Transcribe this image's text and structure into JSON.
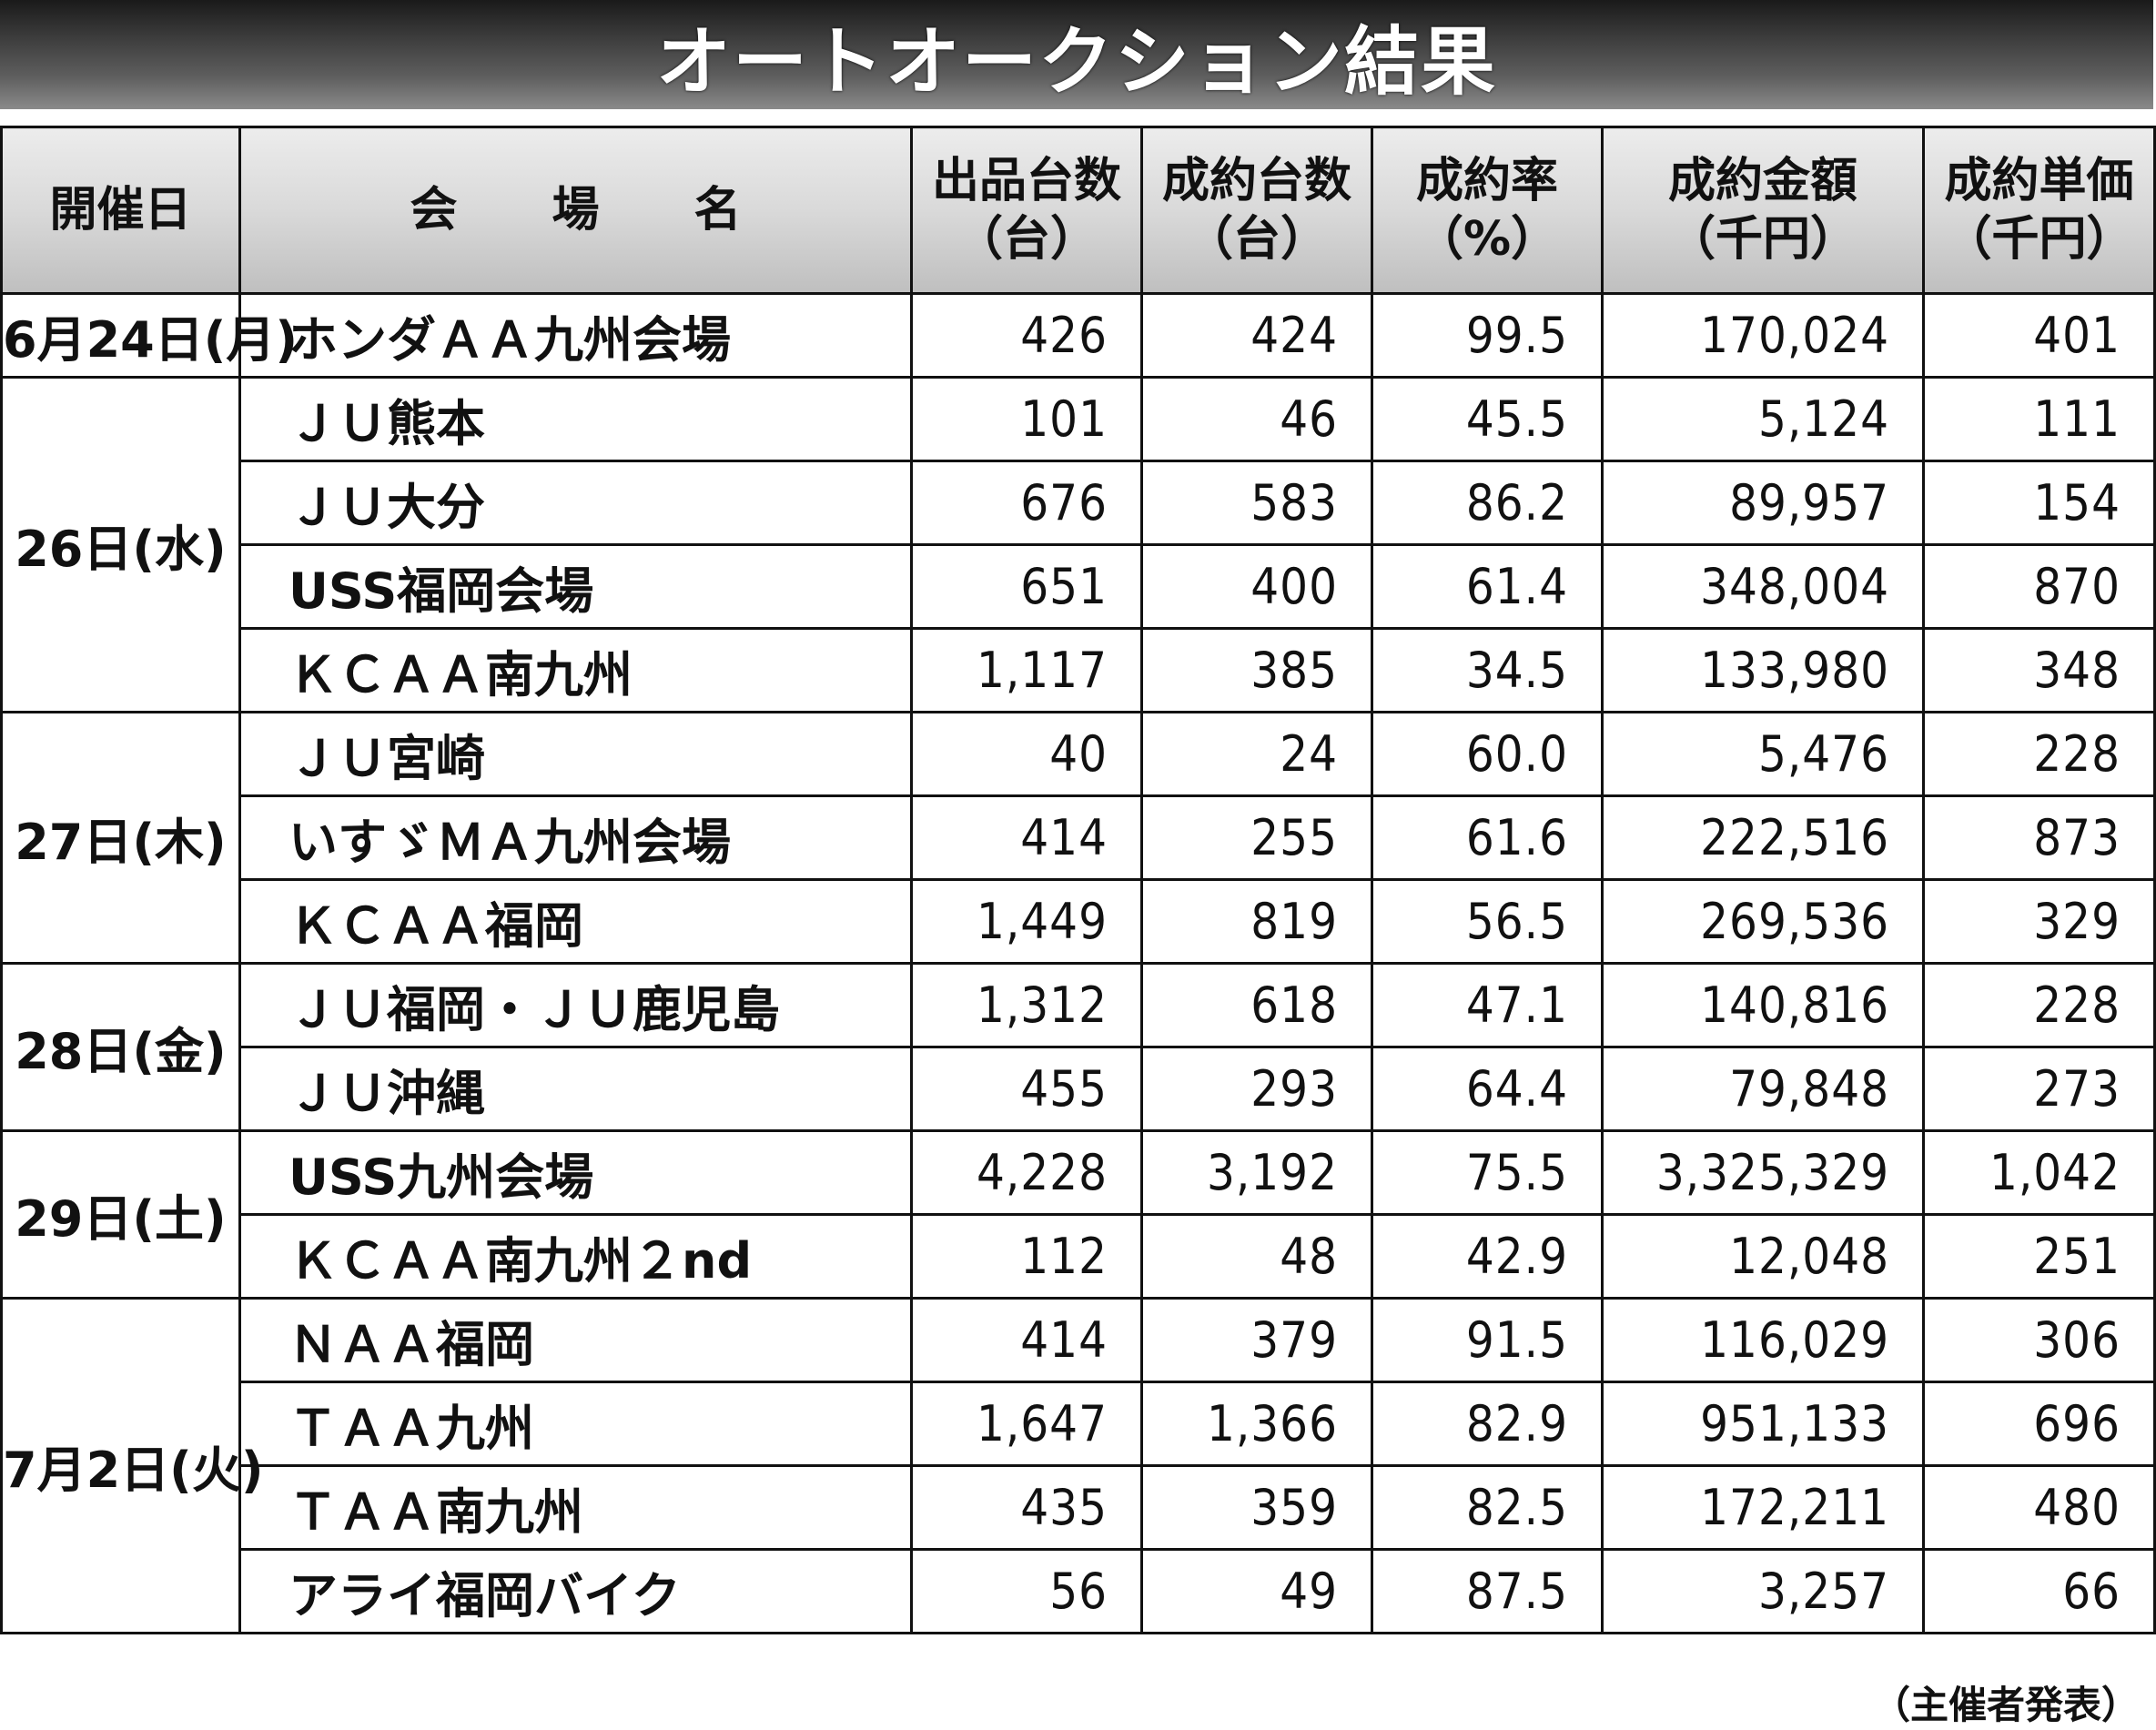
{
  "title": "オートオークション結果",
  "headers": {
    "date": "開催日",
    "venue": "会　　場　　名",
    "listed": [
      "出品台数",
      "（台）"
    ],
    "sold": [
      "成約台数",
      "（台）"
    ],
    "rate": [
      "成約率",
      "（%）"
    ],
    "amount": [
      "成約金額",
      "（千円）"
    ],
    "unit_price": [
      "成約単価",
      "（千円）"
    ]
  },
  "rows": [
    {
      "date": "6月24日(月)",
      "venue": "ホンダＡＡ九州会場",
      "listed": "426",
      "sold": "424",
      "rate": "99.5",
      "amount": "170,024",
      "unit_price": "401"
    },
    {
      "date": "26日(水)",
      "venue": "ＪＵ熊本",
      "listed": "101",
      "sold": "46",
      "rate": "45.5",
      "amount": "5,124",
      "unit_price": "111"
    },
    {
      "date": "",
      "venue": "ＪＵ大分",
      "listed": "676",
      "sold": "583",
      "rate": "86.2",
      "amount": "89,957",
      "unit_price": "154"
    },
    {
      "date": "",
      "venue": "USS福岡会場",
      "listed": "651",
      "sold": "400",
      "rate": "61.4",
      "amount": "348,004",
      "unit_price": "870"
    },
    {
      "date": "",
      "venue": "ＫＣＡＡ南九州",
      "listed": "1,117",
      "sold": "385",
      "rate": "34.5",
      "amount": "133,980",
      "unit_price": "348"
    },
    {
      "date": "27日(木)",
      "venue": "ＪＵ宮崎",
      "listed": "40",
      "sold": "24",
      "rate": "60.0",
      "amount": "5,476",
      "unit_price": "228"
    },
    {
      "date": "",
      "venue": "いすゞＭＡ九州会場",
      "listed": "414",
      "sold": "255",
      "rate": "61.6",
      "amount": "222,516",
      "unit_price": "873"
    },
    {
      "date": "",
      "venue": "ＫＣＡＡ福岡",
      "listed": "1,449",
      "sold": "819",
      "rate": "56.5",
      "amount": "269,536",
      "unit_price": "329"
    },
    {
      "date": "28日(金)",
      "venue": "ＪＵ福岡・ＪＵ鹿児島",
      "listed": "1,312",
      "sold": "618",
      "rate": "47.1",
      "amount": "140,816",
      "unit_price": "228"
    },
    {
      "date": "",
      "venue": "ＪＵ沖縄",
      "listed": "455",
      "sold": "293",
      "rate": "64.4",
      "amount": "79,848",
      "unit_price": "273"
    },
    {
      "date": "29日(土)",
      "venue": "USS九州会場",
      "listed": "4,228",
      "sold": "3,192",
      "rate": "75.5",
      "amount": "3,325,329",
      "unit_price": "1,042"
    },
    {
      "date": "",
      "venue": "ＫＣＡＡ南九州２nd",
      "listed": "112",
      "sold": "48",
      "rate": "42.9",
      "amount": "12,048",
      "unit_price": "251"
    },
    {
      "date": "7月2日(火)",
      "venue": "ＮＡＡ福岡",
      "listed": "414",
      "sold": "379",
      "rate": "91.5",
      "amount": "116,029",
      "unit_price": "306"
    },
    {
      "date": "",
      "venue": "ＴＡＡ九州",
      "listed": "1,647",
      "sold": "1,366",
      "rate": "82.9",
      "amount": "951,133",
      "unit_price": "696"
    },
    {
      "date": "",
      "venue": "ＴＡＡ南九州",
      "listed": "435",
      "sold": "359",
      "rate": "82.5",
      "amount": "172,211",
      "unit_price": "480"
    },
    {
      "date": "",
      "venue": "アライ福岡バイク",
      "listed": "56",
      "sold": "49",
      "rate": "87.5",
      "amount": "3,257",
      "unit_price": "66"
    }
  ],
  "source_note": "（主催者発表）"
}
